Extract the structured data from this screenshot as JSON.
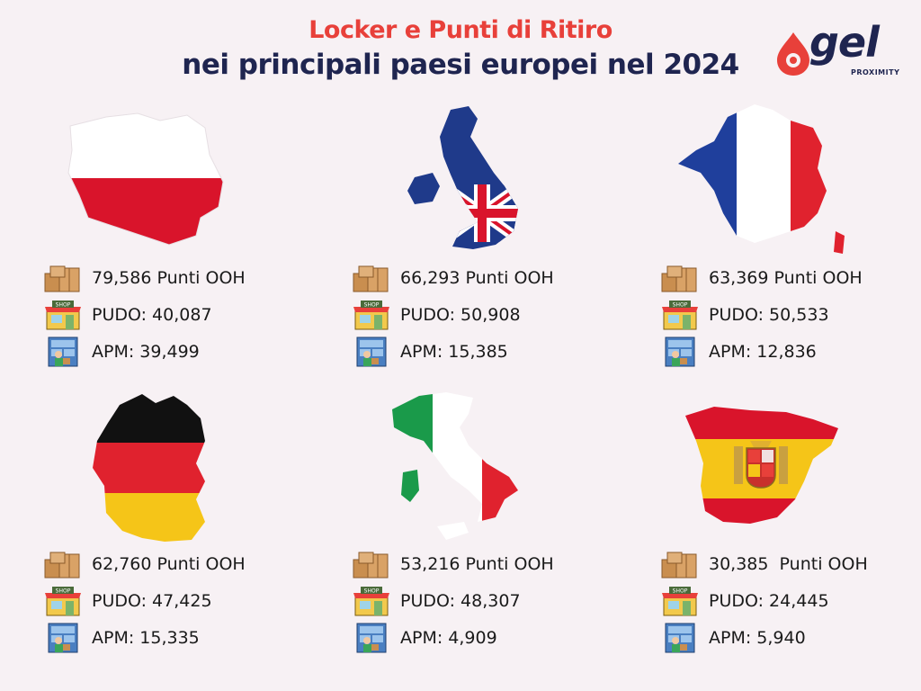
{
  "header": {
    "title_line1": "Locker e Punti di Ritiro",
    "title_line2": "nei principali paesi europei nel 2024",
    "logo_word": "gel",
    "logo_sub": "PROXIMITY"
  },
  "countries": [
    {
      "id": "poland",
      "flag": "poland-flag-map",
      "ooh": "79,586 Punti OOH",
      "pudo": "PUDO: 40,087",
      "apm": "APM: 39,499"
    },
    {
      "id": "uk",
      "flag": "uk-flag-map",
      "ooh": "66,293 Punti OOH",
      "pudo": "PUDO: 50,908",
      "apm": "APM: 15,385"
    },
    {
      "id": "france",
      "flag": "france-flag-map",
      "ooh": "63,369 Punti OOH",
      "pudo": "PUDO: 50,533",
      "apm": "APM: 12,836"
    },
    {
      "id": "germany",
      "flag": "germany-flag-map",
      "ooh": "62,760 Punti OOH",
      "pudo": "PUDO: 47,425",
      "apm": "APM: 15,335"
    },
    {
      "id": "italy",
      "flag": "italy-flag-map",
      "ooh": "53,216 Punti OOH",
      "pudo": "PUDO: 48,307",
      "apm": "APM: 4,909"
    },
    {
      "id": "spain",
      "flag": "spain-flag-map",
      "ooh": "30,385  Punti OOH",
      "pudo": "PUDO: 24,445",
      "apm": "APM: 5,940"
    }
  ],
  "icons": {
    "ooh": "parcel-boxes-icon",
    "pudo": "shop-icon",
    "apm": "parcel-locker-icon",
    "shop_sign": "SHOP"
  },
  "colors": {
    "title_red": "#e8403a",
    "title_navy": "#1f2550",
    "background": "#f7f1f4"
  }
}
